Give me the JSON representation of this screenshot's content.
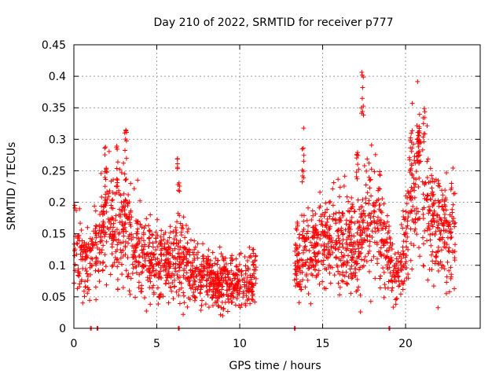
{
  "chart_data": {
    "type": "scatter",
    "title": "Day 210 of 2022, SRMTID for receiver p777",
    "xlabel": "GPS time / hours",
    "ylabel": "SRMTID / TECUs",
    "xlim": [
      0,
      24.5
    ],
    "ylim": [
      0,
      0.45
    ],
    "grid": true,
    "marker": "+",
    "colors": {
      "series": "#ff0000",
      "grid": "#a0a0a0",
      "axes": "#000000"
    },
    "x_ticks": [
      "0",
      "5",
      "10",
      "15",
      "20"
    ],
    "y_ticks": [
      "0",
      "0.05",
      "0.1",
      "0.15",
      "0.2",
      "0.25",
      "0.3",
      "0.35",
      "0.4",
      "0.45"
    ],
    "segments": [
      {
        "name": "segment-1",
        "x_start": 0.0,
        "x_end": 11.0,
        "profile_x": [
          0,
          0.5,
          1.0,
          1.5,
          2.0,
          2.5,
          3.0,
          3.5,
          4.0,
          5.0,
          6.0,
          6.5,
          7.0,
          8.0,
          9.0,
          10.0,
          11.0
        ],
        "profile_y": [
          0.12,
          0.11,
          0.1,
          0.14,
          0.17,
          0.15,
          0.17,
          0.13,
          0.12,
          0.1,
          0.1,
          0.12,
          0.09,
          0.08,
          0.07,
          0.07,
          0.08
        ]
      },
      {
        "name": "segment-2",
        "x_start": 13.3,
        "x_end": 23.0,
        "profile_x": [
          13.3,
          14.0,
          15.0,
          16.0,
          17.0,
          17.5,
          18.0,
          18.5,
          19.0,
          19.5,
          20.0,
          20.5,
          21.0,
          21.5,
          22.0,
          23.0
        ],
        "profile_y": [
          0.1,
          0.12,
          0.13,
          0.14,
          0.12,
          0.16,
          0.17,
          0.15,
          0.1,
          0.08,
          0.15,
          0.23,
          0.24,
          0.16,
          0.15,
          0.15
        ]
      }
    ],
    "bursts": [
      {
        "x": 1.9,
        "y_min": 0.2,
        "y_max": 0.29
      },
      {
        "x": 2.6,
        "y_min": 0.22,
        "y_max": 0.29
      },
      {
        "x": 3.1,
        "y_min": 0.22,
        "y_max": 0.32
      },
      {
        "x": 6.3,
        "y_min": 0.2,
        "y_max": 0.27
      },
      {
        "x": 13.8,
        "y_min": 0.22,
        "y_max": 0.32
      },
      {
        "x": 17.1,
        "y_min": 0.23,
        "y_max": 0.28
      },
      {
        "x": 17.4,
        "y_min": 0.33,
        "y_max": 0.41
      },
      {
        "x": 20.3,
        "y_min": 0.24,
        "y_max": 0.31
      },
      {
        "x": 20.8,
        "y_min": 0.26,
        "y_max": 0.32
      }
    ],
    "zero_points": [
      1.0,
      1.4,
      6.3,
      13.3,
      19.0
    ],
    "point_count": 2200
  }
}
